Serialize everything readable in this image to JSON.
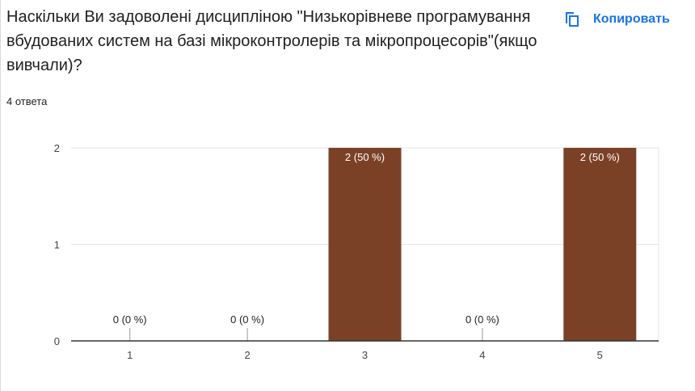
{
  "question": {
    "title": "Наскільки Ви задоволені дисципліною \"Низькорівневе програмування вбудованих систем на базі мікроконтролерів та мікропроцесорів\"(якщо вивчали)?",
    "responses": "4 ответа"
  },
  "toolbar": {
    "copy_label": "Копировать",
    "copy_icon": "copy-icon"
  },
  "colors": {
    "bar": "#7b4127",
    "accent": "#1a73e8",
    "grid": "#e6e6e6",
    "axis": "#333333"
  },
  "chart_data": {
    "type": "bar",
    "categories": [
      "1",
      "2",
      "3",
      "4",
      "5"
    ],
    "values": [
      0,
      0,
      2,
      0,
      2
    ],
    "labels": [
      "0 (0 %)",
      "0 (0 %)",
      "2 (50 %)",
      "0 (0 %)",
      "2 (50 %)"
    ],
    "ylim": [
      0,
      2
    ],
    "yticks": [
      "0",
      "1",
      "2"
    ],
    "grid": true,
    "legend": "none"
  }
}
